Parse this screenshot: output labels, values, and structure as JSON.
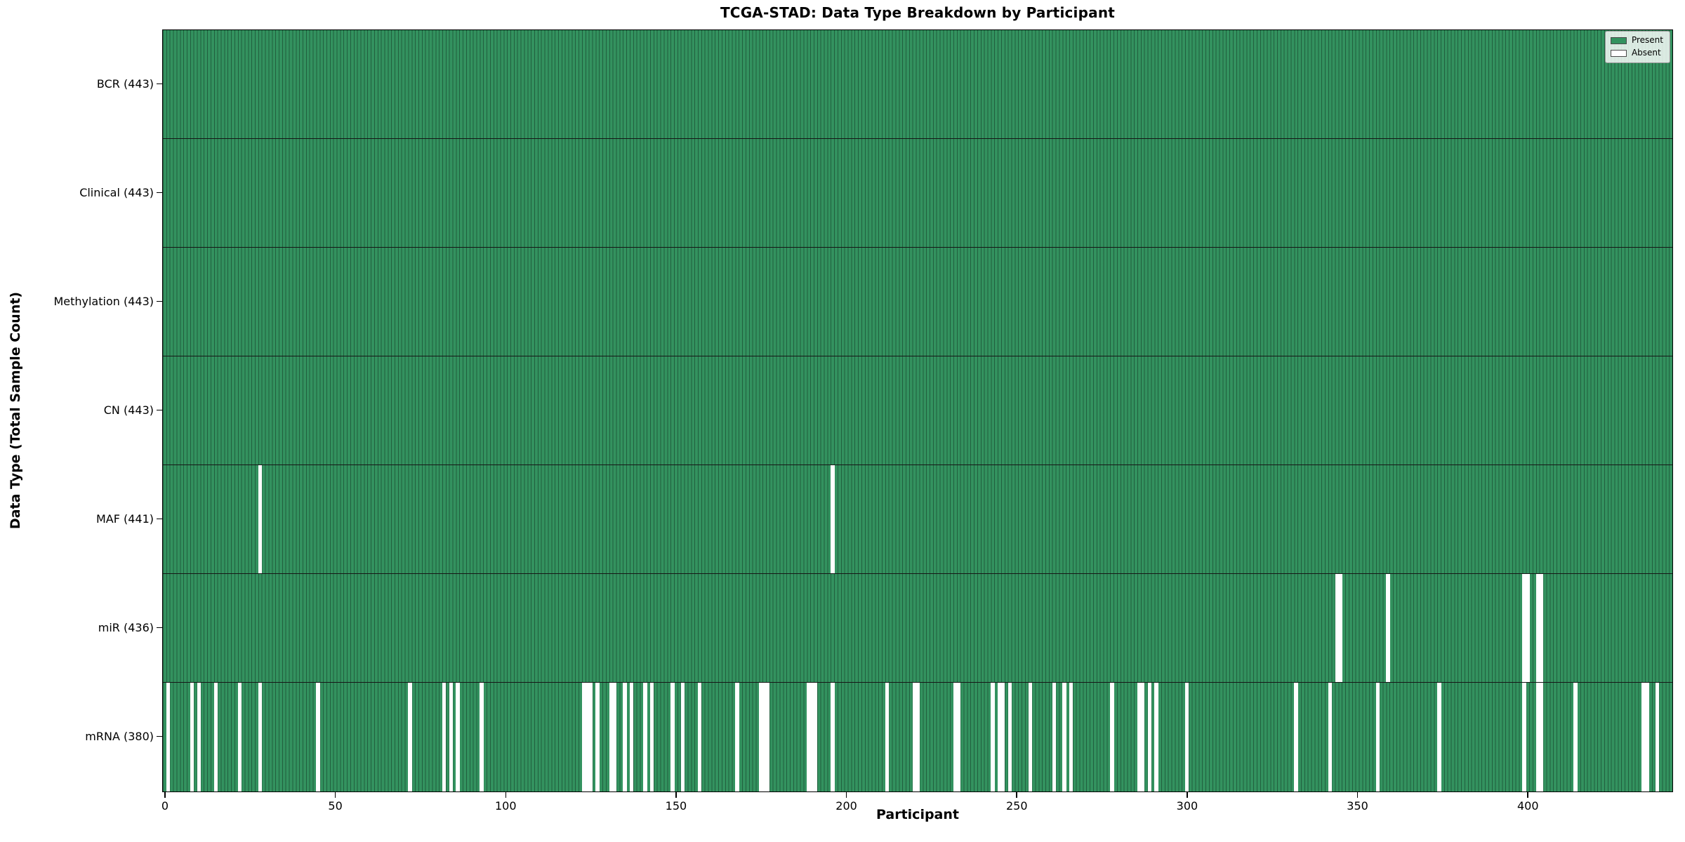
{
  "chart_data": {
    "type": "heatmap",
    "title": "TCGA-STAD: Data Type Breakdown by Participant",
    "xlabel": "Participant",
    "ylabel": "Data Type (Total Sample Count)",
    "n_participants": 443,
    "x_range": [
      -0.5,
      442.5
    ],
    "x_ticks": [
      0,
      50,
      100,
      150,
      200,
      250,
      300,
      350,
      400
    ],
    "grid": false,
    "legend": {
      "position": "upper right",
      "entries": [
        {
          "label": "Present",
          "swatch": "present"
        },
        {
          "label": "Absent",
          "swatch": "absent"
        }
      ]
    },
    "colors": {
      "present": "#33925f",
      "absent": "#ffffff",
      "bar_edge": "rgba(0,0,0,0.35)",
      "row_divider": "#161616",
      "plot_border": "#000000"
    },
    "rows": [
      {
        "name": "BCR",
        "label": "BCR (443)",
        "present_count": 443,
        "absent_participants": []
      },
      {
        "name": "Clinical",
        "label": "Clinical (443)",
        "present_count": 443,
        "absent_participants": []
      },
      {
        "name": "Methylation",
        "label": "Methylation (443)",
        "present_count": 443,
        "absent_participants": []
      },
      {
        "name": "CN",
        "label": "CN (443)",
        "present_count": 443,
        "absent_participants": []
      },
      {
        "name": "MAF",
        "label": "MAF (441)",
        "present_count": 441,
        "absent_participants": [
          28,
          196
        ]
      },
      {
        "name": "miR",
        "label": "miR (436)",
        "present_count": 436,
        "absent_participants": [
          344,
          345,
          359,
          399,
          400,
          403,
          404
        ]
      },
      {
        "name": "mRNA",
        "label": "mRNA (380)",
        "present_count": 380,
        "absent_participants": [
          1,
          8,
          10,
          15,
          22,
          28,
          45,
          72,
          82,
          84,
          86,
          93,
          123,
          124,
          125,
          127,
          131,
          132,
          135,
          137,
          141,
          143,
          149,
          152,
          157,
          168,
          175,
          176,
          177,
          189,
          190,
          191,
          196,
          212,
          220,
          221,
          232,
          233,
          243,
          245,
          246,
          248,
          254,
          261,
          264,
          266,
          278,
          286,
          287,
          289,
          291,
          300,
          332,
          342,
          356,
          374,
          399,
          403,
          404,
          414,
          434,
          435,
          438
        ]
      }
    ]
  }
}
